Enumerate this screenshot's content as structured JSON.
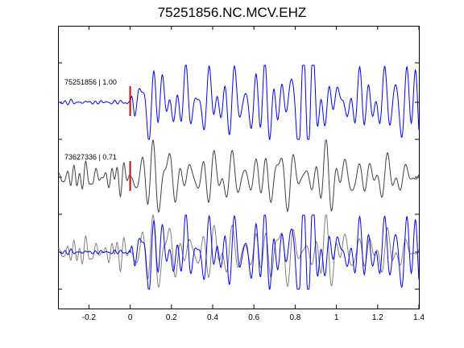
{
  "chart_data": {
    "type": "line",
    "title": "75251856.NC.MCV.EHZ",
    "xlim": [
      -0.35,
      1.4
    ],
    "x_ticks": [
      "-0.2",
      "0",
      "0.2",
      "0.4",
      "0.6",
      "0.8",
      "1",
      "1.2",
      "1.4"
    ],
    "x_tick_values": [
      -0.2,
      0,
      0.2,
      0.4,
      0.6,
      0.8,
      1.0,
      1.2,
      1.4
    ],
    "pick_time": 0,
    "traces": [
      {
        "label": "75251856 | 1.00",
        "color": "#0000ff",
        "row": 0,
        "kind": "master",
        "seed": 1,
        "pre_noise": 0.06,
        "amp": 1.0
      },
      {
        "label": "73627336 | 0.71",
        "color": "#404040",
        "row": 1,
        "kind": "neighbor",
        "seed": 7,
        "pre_noise": 0.55,
        "amp": 0.95
      }
    ],
    "overlay": {
      "row": 2,
      "colors": [
        "#808080",
        "#0000ff"
      ]
    },
    "marker_color": "#dd0000",
    "grid": false
  }
}
